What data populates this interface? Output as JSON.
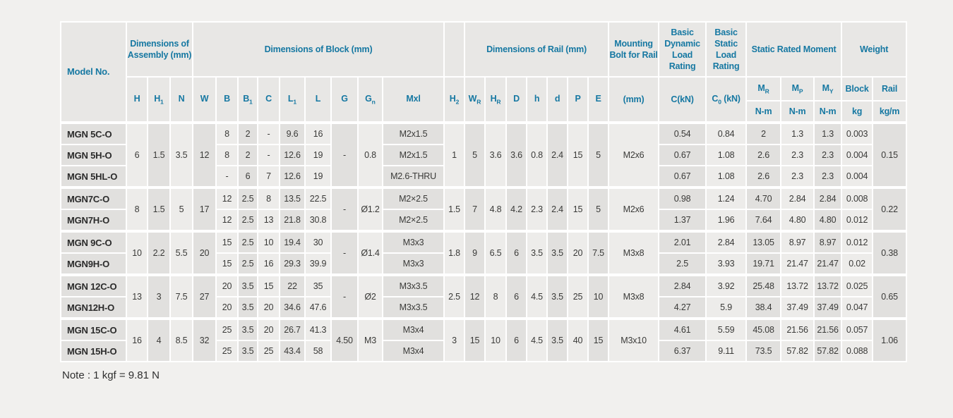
{
  "colors": {
    "background": "#f1f0ee",
    "header_text": "#1678a2",
    "cell_light": "#edecea",
    "cell_dark": "#e1e0de",
    "separator": "#ffffff",
    "data_text": "#3a3a38"
  },
  "header": {
    "model": "Model No.",
    "groups": {
      "assembly": "Dimensions of Assembly (mm)",
      "block": "Dimensions of Block (mm)",
      "rail": "Dimensions of Rail (mm)",
      "bolt": "Mounting Bolt for Rail",
      "dynamic": "Basic Dynamic Load Rating",
      "static": "Basic Static Load Rating",
      "moment": "Static Rated Moment",
      "weight": "Weight"
    },
    "symbols": [
      {
        "base": "H",
        "sub": ""
      },
      {
        "base": "H",
        "sub": "1"
      },
      {
        "base": "N",
        "sub": ""
      },
      {
        "base": "W",
        "sub": ""
      },
      {
        "base": "B",
        "sub": ""
      },
      {
        "base": "B",
        "sub": "1"
      },
      {
        "base": "C",
        "sub": ""
      },
      {
        "base": "L",
        "sub": "1"
      },
      {
        "base": "L",
        "sub": ""
      },
      {
        "base": "G",
        "sub": ""
      },
      {
        "base": "G",
        "sub": "n"
      },
      {
        "base": "Mxl",
        "sub": ""
      },
      {
        "base": "H",
        "sub": "2"
      },
      {
        "base": "W",
        "sub": "R"
      },
      {
        "base": "H",
        "sub": "R"
      },
      {
        "base": "D",
        "sub": ""
      },
      {
        "base": "h",
        "sub": ""
      },
      {
        "base": "d",
        "sub": ""
      },
      {
        "base": "P",
        "sub": ""
      },
      {
        "base": "E",
        "sub": ""
      }
    ],
    "bolt_unit": "(mm)",
    "dynamic_unit": "C(kN)",
    "static_unit": {
      "pre": "C",
      "sub": "0",
      "post": " (kN)"
    },
    "moment_cols": [
      {
        "base": "M",
        "sub": "R"
      },
      {
        "base": "M",
        "sub": "P"
      },
      {
        "base": "M",
        "sub": "Y"
      }
    ],
    "moment_units": [
      "N-m",
      "N-m",
      "N-m"
    ],
    "weight_cols": [
      "Block",
      "Rail"
    ],
    "weight_units": [
      "kg",
      "kg/m"
    ]
  },
  "groups": [
    {
      "merged": {
        "H": "6",
        "H1": "1.5",
        "N": "3.5",
        "W": "12",
        "G": "-",
        "Gn": "0.8",
        "H2": "1",
        "WR": "5",
        "HR": "3.6",
        "D": "3.6",
        "h": "0.8",
        "d": "2.4",
        "P": "15",
        "E": "5",
        "bolt_mm": "M2x6",
        "rail_kgm": "0.15"
      },
      "rows": [
        {
          "model": "MGN 5C-O",
          "B": "8",
          "B1": "2",
          "C": "-",
          "L1": "9.6",
          "L": "16",
          "Mxl": "M2x1.5",
          "C_kN": "0.54",
          "C0_kN": "0.84",
          "MR": "2",
          "MP": "1.3",
          "MY": "1.3",
          "block_kg": "0.003"
        },
        {
          "model": "MGN 5H-O",
          "B": "8",
          "B1": "2",
          "C": "-",
          "L1": "12.6",
          "L": "19",
          "Mxl": "M2x1.5",
          "C_kN": "0.67",
          "C0_kN": "1.08",
          "MR": "2.6",
          "MP": "2.3",
          "MY": "2.3",
          "block_kg": "0.004"
        },
        {
          "model": "MGN 5HL-O",
          "B": "-",
          "B1": "6",
          "C": "7",
          "L1": "12.6",
          "L": "19",
          "Mxl": "M2.6-THRU",
          "C_kN": "0.67",
          "C0_kN": "1.08",
          "MR": "2.6",
          "MP": "2.3",
          "MY": "2.3",
          "block_kg": "0.004"
        }
      ]
    },
    {
      "merged": {
        "H": "8",
        "H1": "1.5",
        "N": "5",
        "W": "17",
        "G": "-",
        "Gn": "Ø1.2",
        "H2": "1.5",
        "WR": "7",
        "HR": "4.8",
        "D": "4.2",
        "h": "2.3",
        "d": "2.4",
        "P": "15",
        "E": "5",
        "bolt_mm": "M2x6",
        "rail_kgm": "0.22"
      },
      "rows": [
        {
          "model": "MGN7C-O",
          "B": "12",
          "B1": "2.5",
          "C": "8",
          "L1": "13.5",
          "L": "22.5",
          "Mxl": "M2×2.5",
          "C_kN": "0.98",
          "C0_kN": "1.24",
          "MR": "4.70",
          "MP": "2.84",
          "MY": "2.84",
          "block_kg": "0.008"
        },
        {
          "model": "MGN7H-O",
          "B": "12",
          "B1": "2.5",
          "C": "13",
          "L1": "21.8",
          "L": "30.8",
          "Mxl": "M2×2.5",
          "C_kN": "1.37",
          "C0_kN": "1.96",
          "MR": "7.64",
          "MP": "4.80",
          "MY": "4.80",
          "block_kg": "0.012"
        }
      ]
    },
    {
      "merged": {
        "H": "10",
        "H1": "2.2",
        "N": "5.5",
        "W": "20",
        "G": "-",
        "Gn": "Ø1.4",
        "H2": "1.8",
        "WR": "9",
        "HR": "6.5",
        "D": "6",
        "h": "3.5",
        "d": "3.5",
        "P": "20",
        "E": "7.5",
        "bolt_mm": "M3x8",
        "rail_kgm": "0.38"
      },
      "rows": [
        {
          "model": "MGN 9C-O",
          "B": "15",
          "B1": "2.5",
          "C": "10",
          "L1": "19.4",
          "L": "30",
          "Mxl": "M3x3",
          "C_kN": "2.01",
          "C0_kN": "2.84",
          "MR": "13.05",
          "MP": "8.97",
          "MY": "8.97",
          "block_kg": "0.012"
        },
        {
          "model": "MGN9H-O",
          "B": "15",
          "B1": "2.5",
          "C": "16",
          "L1": "29.3",
          "L": "39.9",
          "Mxl": "M3x3",
          "C_kN": "2.5",
          "C0_kN": "3.93",
          "MR": "19.71",
          "MP": "21.47",
          "MY": "21.47",
          "block_kg": "0.02"
        }
      ]
    },
    {
      "merged": {
        "H": "13",
        "H1": "3",
        "N": "7.5",
        "W": "27",
        "G": "-",
        "Gn": "Ø2",
        "H2": "2.5",
        "WR": "12",
        "HR": "8",
        "D": "6",
        "h": "4.5",
        "d": "3.5",
        "P": "25",
        "E": "10",
        "bolt_mm": "M3x8",
        "rail_kgm": "0.65"
      },
      "rows": [
        {
          "model": "MGN 12C-O",
          "B": "20",
          "B1": "3.5",
          "C": "15",
          "L1": "22",
          "L": "35",
          "Mxl": "M3x3.5",
          "C_kN": "2.84",
          "C0_kN": "3.92",
          "MR": "25.48",
          "MP": "13.72",
          "MY": "13.72",
          "block_kg": "0.025"
        },
        {
          "model": "MGN12H-O",
          "B": "20",
          "B1": "3.5",
          "C": "20",
          "L1": "34.6",
          "L": "47.6",
          "Mxl": "M3x3.5",
          "C_kN": "4.27",
          "C0_kN": "5.9",
          "MR": "38.4",
          "MP": "37.49",
          "MY": "37.49",
          "block_kg": "0.047"
        }
      ]
    },
    {
      "merged": {
        "H": "16",
        "H1": "4",
        "N": "8.5",
        "W": "32",
        "G": "4.50",
        "Gn": "M3",
        "H2": "3",
        "WR": "15",
        "HR": "10",
        "D": "6",
        "h": "4.5",
        "d": "3.5",
        "P": "40",
        "E": "15",
        "bolt_mm": "M3x10",
        "rail_kgm": "1.06"
      },
      "rows": [
        {
          "model": "MGN 15C-O",
          "B": "25",
          "B1": "3.5",
          "C": "20",
          "L1": "26.7",
          "L": "41.3",
          "Mxl": "M3x4",
          "C_kN": "4.61",
          "C0_kN": "5.59",
          "MR": "45.08",
          "MP": "21.56",
          "MY": "21.56",
          "block_kg": "0.057"
        },
        {
          "model": "MGN 15H-O",
          "B": "25",
          "B1": "3.5",
          "C": "25",
          "L1": "43.4",
          "L": "58",
          "Mxl": "M3x4",
          "C_kN": "6.37",
          "C0_kN": "9.11",
          "MR": "73.5",
          "MP": "57.82",
          "MY": "57.82",
          "block_kg": "0.088"
        }
      ]
    }
  ],
  "note": {
    "text": "Note : 1 kgf = 9.81 N"
  }
}
